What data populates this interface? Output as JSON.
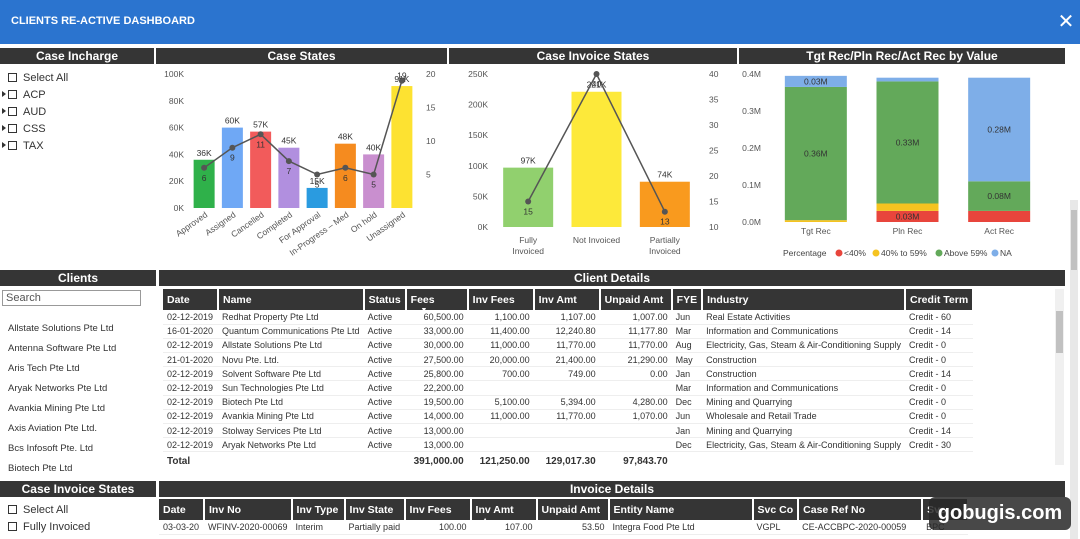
{
  "window": {
    "title": "CLIENTS RE-ACTIVE DASHBOARD",
    "close": "✕"
  },
  "panels": {
    "case_incharge": "Case Incharge",
    "case_states": "Case States",
    "case_invoice_states": "Case Invoice States",
    "tgt": "Tgt Rec/Pln Rec/Act Rec by Value",
    "clients": "Clients",
    "client_details": "Client Details",
    "case_invoice_states_slicer": "Case Invoice States",
    "invoice_details": "Invoice Details"
  },
  "case_incharge": [
    {
      "label": "Select All",
      "expand": false
    },
    {
      "label": "ACP",
      "expand": true
    },
    {
      "label": "AUD",
      "expand": true
    },
    {
      "label": "CSS",
      "expand": true
    },
    {
      "label": "TAX",
      "expand": true
    }
  ],
  "case_invoice_slicer": [
    {
      "label": "Select All"
    },
    {
      "label": "Fully Invoiced"
    }
  ],
  "search": {
    "placeholder": "Search"
  },
  "clients": [
    "Allstate Solutions Pte Ltd",
    "Antenna Software Pte Ltd",
    "Aris Tech Pte Ltd",
    "Aryak Networks Pte Ltd",
    "Avankia Mining Pte Ltd",
    "Axis Aviation Pte Ltd.",
    "Bcs Infosoft Pte. Ltd",
    "Biotech Pte Ltd"
  ],
  "colors": {
    "titlebar": "#2b74cf",
    "header": "#353535"
  },
  "chart_data": [
    {
      "type": "bar",
      "title": "Case States",
      "categories": [
        "Approved",
        "Assigned",
        "Cancelled",
        "Completed",
        "For Approval",
        "In-Progress – Med",
        "On hold",
        "Unassigned"
      ],
      "series": [
        {
          "values": [
            36000,
            60000,
            57000,
            45000,
            15000,
            48000,
            40000,
            91000
          ],
          "labels": [
            "36K",
            "60K",
            "57K",
            "45K",
            "15K",
            "48K",
            "40K",
            "91K"
          ]
        },
        {
          "values": [
            6,
            9,
            11,
            7,
            5,
            6,
            5,
            19
          ]
        }
      ],
      "colors": [
        "#2fb14a",
        "#6fa8f5",
        "#f25b5b",
        "#b18fdf",
        "#2a9be0",
        "#f58b1f",
        "#c98fcf",
        "#fde231"
      ],
      "y_ticks": [
        "100K",
        "80K",
        "60K",
        "40K",
        "20K",
        "0K"
      ],
      "y2_ticks": [
        "20",
        "15",
        "10",
        "5"
      ],
      "ylim": [
        0,
        100000
      ],
      "y2lim": [
        0,
        20
      ]
    },
    {
      "type": "bar",
      "title": "Case Invoice States",
      "categories": [
        "Fully Invoiced",
        "Not Invoiced",
        "Partially Invoiced"
      ],
      "series": [
        {
          "values": [
            97000,
            221000,
            74000
          ],
          "labels": [
            "97K",
            "221K",
            "74K"
          ]
        },
        {
          "values": [
            15,
            40,
            13
          ]
        }
      ],
      "colors": [
        "#91d06e",
        "#fde93a",
        "#f99a1e"
      ],
      "y_ticks": [
        "250K",
        "200K",
        "150K",
        "100K",
        "50K",
        "0K"
      ],
      "y2_ticks": [
        "40",
        "35",
        "30",
        "25",
        "20",
        "15",
        "10"
      ],
      "ylim": [
        0,
        250000
      ],
      "y2lim": [
        10,
        40
      ]
    },
    {
      "type": "bar",
      "title": "Tgt Rec/Pln Rec/Act Rec by Value",
      "categories": [
        "Tgt Rec",
        "Pln Rec",
        "Act Rec"
      ],
      "series": [
        {
          "name": "<40%",
          "values": [
            0,
            0.03,
            0.03
          ]
        },
        {
          "name": "40% to 59%",
          "values": [
            0.005,
            0.02,
            0
          ]
        },
        {
          "name": "Above 59%",
          "values": [
            0.36,
            0.33,
            0.08
          ]
        },
        {
          "name": "NA",
          "values": [
            0.03,
            0.01,
            0.28
          ]
        }
      ],
      "seg_labels": [
        [
          "",
          "",
          "0.36M",
          "0.03M"
        ],
        [
          "0.03M",
          "",
          "0.33M",
          ""
        ],
        [
          "",
          "",
          "0.08M",
          "0.28M"
        ]
      ],
      "colors": [
        "#e8453c",
        "#f5c320",
        "#63a95a",
        "#7eaee8"
      ],
      "y_ticks": [
        "0.4M",
        "0.3M",
        "0.2M",
        "0.1M",
        "0.0M"
      ],
      "ylim": [
        0,
        0.4
      ],
      "legend_title": "Percentage",
      "legend": [
        "<40%",
        "40% to 59%",
        "Above 59%",
        "NA"
      ]
    }
  ],
  "client_details": {
    "columns": [
      "Date",
      "Name",
      "Status",
      "Fees",
      "Inv Fees",
      "Inv Amt",
      "Unpaid Amt",
      "FYE",
      "Industry",
      "Credit Term"
    ],
    "rows": [
      [
        "02-12-2019",
        "Redhat Property Pte Ltd",
        "Active",
        "60,500.00",
        "1,100.00",
        "1,107.00",
        "1,007.00",
        "Jun",
        "Real Estate Activities",
        "Credit - 60"
      ],
      [
        "16-01-2020",
        "Quantum Communications Pte Ltd",
        "Active",
        "33,000.00",
        "11,400.00",
        "12,240.80",
        "11,177.80",
        "Mar",
        "Information and Communications",
        "Credit - 14"
      ],
      [
        "02-12-2019",
        "Allstate Solutions Pte Ltd",
        "Active",
        "30,000.00",
        "11,000.00",
        "11,770.00",
        "11,770.00",
        "Aug",
        "Electricity, Gas, Steam & Air-Conditioning Supply",
        "Credit - 0"
      ],
      [
        "21-01-2020",
        "Novu Pte. Ltd.",
        "Active",
        "27,500.00",
        "20,000.00",
        "21,400.00",
        "21,290.00",
        "May",
        "Construction",
        "Credit - 0"
      ],
      [
        "02-12-2019",
        "Solvent Software Pte Ltd",
        "Active",
        "25,800.00",
        "700.00",
        "749.00",
        "0.00",
        "Jan",
        "Construction",
        "Credit - 14"
      ],
      [
        "02-12-2019",
        "Sun Technologies Pte Ltd",
        "Active",
        "22,200.00",
        "",
        "",
        "",
        "Mar",
        "Information and Communications",
        "Credit - 0"
      ],
      [
        "02-12-2019",
        "Biotech Pte Ltd",
        "Active",
        "19,500.00",
        "5,100.00",
        "5,394.00",
        "4,280.00",
        "Dec",
        "Mining and Quarrying",
        "Credit - 0"
      ],
      [
        "02-12-2019",
        "Avankia Mining Pte Ltd",
        "Active",
        "14,000.00",
        "11,000.00",
        "11,770.00",
        "1,070.00",
        "Jun",
        "Wholesale and Retail Trade",
        "Credit - 0"
      ],
      [
        "02-12-2019",
        "Stolway Services Pte Ltd",
        "Active",
        "13,000.00",
        "",
        "",
        "",
        "Jan",
        "Mining and Quarrying",
        "Credit - 14"
      ],
      [
        "02-12-2019",
        "Aryak Networks Pte Ltd",
        "Active",
        "13,000.00",
        "",
        "",
        "",
        "Dec",
        "Electricity, Gas, Steam & Air-Conditioning Supply",
        "Credit - 30"
      ]
    ],
    "total": {
      "label": "Total",
      "fees": "391,000.00",
      "inv_fees": "121,250.00",
      "inv_amt": "129,017.30",
      "unpaid": "97,843.70"
    }
  },
  "invoice_details": {
    "columns": [
      "Date",
      "Inv No",
      "Inv Type",
      "Inv State",
      "Inv Fees",
      "Inv Amt",
      "Unpaid Amt",
      "Entity Name",
      "Svc Co",
      "Case Ref No",
      "Svc"
    ],
    "rows": [
      [
        "03-03-20",
        "WFINV-2020-00069",
        "Interim",
        "Partially paid",
        "100.00",
        "107.00",
        "53.50",
        "Integra Food Pte Ltd",
        "VGPL",
        "CE-ACCBPC-2020-00059",
        "BPC"
      ]
    ]
  },
  "watermark": "gobugis.com"
}
